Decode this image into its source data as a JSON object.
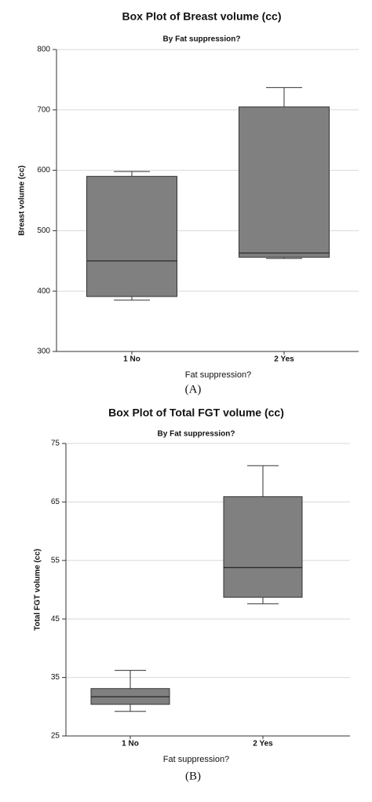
{
  "chart_data": [
    {
      "type": "box",
      "title": "Box Plot of Breast volume (cc)",
      "subtitle": "By Fat suppression?",
      "x_label": "Fat suppression?",
      "y_label": "Breast volume (cc)",
      "caption": "(A)",
      "categories": [
        "1 No",
        "2 Yes"
      ],
      "color": "#808080",
      "grid": true,
      "min": [
        385,
        454
      ],
      "q1": [
        391,
        456
      ],
      "median": [
        450,
        463
      ],
      "q3": [
        590,
        705
      ],
      "max": [
        598,
        737
      ],
      "ylim": [
        300,
        800
      ],
      "yticks": [
        300,
        400,
        500,
        600,
        700,
        800
      ]
    },
    {
      "type": "box",
      "title": "Box Plot of Total FGT volume (cc)",
      "subtitle": "By Fat suppression?",
      "x_label": "Fat suppression?",
      "y_label": "Total FGT volume (cc)",
      "caption": "(B)",
      "categories": [
        "1 No",
        "2 Yes"
      ],
      "color": "#808080",
      "grid": true,
      "min": [
        29.2,
        47.6
      ],
      "q1": [
        30.4,
        48.7
      ],
      "median": [
        31.7,
        53.8
      ],
      "q3": [
        33.1,
        65.9
      ],
      "max": [
        36.2,
        71.2
      ],
      "ylim": [
        25,
        75
      ],
      "yticks": [
        25,
        35,
        45,
        55,
        65,
        75
      ]
    }
  ]
}
